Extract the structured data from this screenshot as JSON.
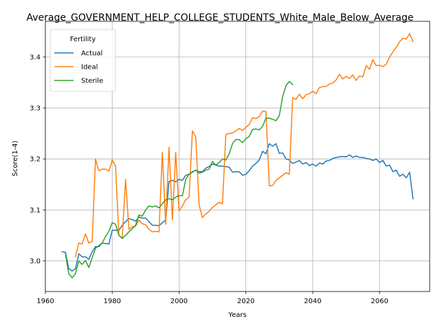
{
  "chart_data": {
    "type": "line",
    "title": "Average_GOVERNMENT_HELP_COLLEGE_STUDENTS_White_Male_Below_Average",
    "xlabel": "Years",
    "ylabel": "Score(1-4)",
    "xlim": [
      1960,
      2075
    ],
    "ylim": [
      2.94,
      3.47
    ],
    "xticks": [
      1960,
      1980,
      2000,
      2020,
      2040,
      2060
    ],
    "yticks": [
      3.0,
      3.1,
      3.2,
      3.3,
      3.4
    ],
    "xtick_labels": [
      "1960",
      "1980",
      "2000",
      "2020",
      "2040",
      "2060"
    ],
    "ytick_labels": [
      "3.0",
      "3.1",
      "3.2",
      "3.3",
      "3.4"
    ],
    "grid": true,
    "legend": {
      "title": "Fertility",
      "placement": "top-left"
    },
    "series": [
      {
        "name": "Actual",
        "color": "#1f77b4",
        "x": [
          1965,
          1966,
          1967,
          1968,
          1969,
          1970,
          1971,
          1972,
          1973,
          1974,
          1975,
          1976,
          1977,
          1978,
          1979,
          1980,
          1981,
          1982,
          1983,
          1984,
          1985,
          1986,
          1987,
          1988,
          1989,
          1990,
          1991,
          1992,
          1993,
          1994,
          1995,
          1996,
          1997,
          1998,
          1999,
          2000,
          2001,
          2002,
          2003,
          2004,
          2005,
          2006,
          2007,
          2008,
          2009,
          2010,
          2011,
          2012,
          2013,
          2014,
          2015,
          2016,
          2017,
          2018,
          2019,
          2020,
          2021,
          2022,
          2023,
          2024,
          2025,
          2026,
          2027,
          2028,
          2029,
          2030,
          2031,
          2032,
          2033,
          2034,
          2035,
          2036,
          2037,
          2038,
          2039,
          2040,
          2041,
          2042,
          2043,
          2044,
          2045,
          2046,
          2047,
          2048,
          2049,
          2050,
          2051,
          2052,
          2053,
          2054,
          2055,
          2056,
          2057,
          2058,
          2059,
          2060,
          2061,
          2062,
          2063,
          2064,
          2065,
          2066,
          2067,
          2068,
          2069,
          2070
        ],
        "y": [
          3.018,
          3.017,
          2.985,
          2.98,
          2.985,
          3.014,
          3.008,
          3.008,
          3.003,
          3.018,
          3.028,
          3.028,
          3.035,
          3.034,
          3.033,
          3.06,
          3.06,
          3.06,
          3.07,
          3.077,
          3.083,
          3.081,
          3.078,
          3.086,
          3.084,
          3.084,
          3.077,
          3.07,
          3.07,
          3.069,
          3.075,
          3.08,
          3.156,
          3.158,
          3.155,
          3.16,
          3.158,
          3.168,
          3.17,
          3.174,
          3.178,
          3.175,
          3.175,
          3.182,
          3.185,
          3.19,
          3.188,
          3.186,
          3.186,
          3.185,
          3.184,
          3.174,
          3.175,
          3.175,
          3.168,
          3.17,
          3.177,
          3.186,
          3.191,
          3.198,
          3.215,
          3.21,
          3.23,
          3.225,
          3.23,
          3.211,
          3.212,
          3.2,
          3.198,
          3.191,
          3.194,
          3.197,
          3.19,
          3.193,
          3.187,
          3.19,
          3.186,
          3.192,
          3.19,
          3.196,
          3.197,
          3.201,
          3.203,
          3.204,
          3.205,
          3.204,
          3.208,
          3.203,
          3.206,
          3.203,
          3.203,
          3.201,
          3.2,
          3.197,
          3.2,
          3.193,
          3.197,
          3.186,
          3.188,
          3.175,
          3.178,
          3.166,
          3.17,
          3.163,
          3.174,
          3.122
        ]
      },
      {
        "name": "Ideal",
        "color": "#ff7f0e",
        "x": [
          1969,
          1970,
          1971,
          1972,
          1973,
          1974,
          1975,
          1976,
          1977,
          1978,
          1979,
          1980,
          1981,
          1982,
          1983,
          1984,
          1985,
          1986,
          1987,
          1988,
          1989,
          1990,
          1991,
          1992,
          1993,
          1994,
          1995,
          1996,
          1997,
          1998,
          1999,
          2000,
          2001,
          2002,
          2003,
          2004,
          2005,
          2006,
          2007,
          2008,
          2009,
          2010,
          2011,
          2012,
          2013,
          2014,
          2015,
          2016,
          2017,
          2018,
          2019,
          2020,
          2021,
          2022,
          2023,
          2024,
          2025,
          2026,
          2027,
          2028,
          2029,
          2030,
          2031,
          2032,
          2033,
          2034,
          2035,
          2036,
          2037,
          2038,
          2039,
          2040,
          2041,
          2042,
          2043,
          2044,
          2045,
          2046,
          2047,
          2048,
          2049,
          2050,
          2051,
          2052,
          2053,
          2054,
          2055,
          2056,
          2057,
          2058,
          2059,
          2060,
          2061,
          2062,
          2063,
          2064,
          2065,
          2066,
          2067,
          2068,
          2069,
          2070
        ],
        "y": [
          3.008,
          3.035,
          3.033,
          3.053,
          3.035,
          3.038,
          3.2,
          3.177,
          3.18,
          3.18,
          3.176,
          3.198,
          3.186,
          3.05,
          3.045,
          3.16,
          3.062,
          3.067,
          3.068,
          3.08,
          3.073,
          3.071,
          3.062,
          3.057,
          3.058,
          3.057,
          3.213,
          3.072,
          3.223,
          3.08,
          3.213,
          3.098,
          3.108,
          3.12,
          3.125,
          3.255,
          3.243,
          3.11,
          3.085,
          3.092,
          3.097,
          3.105,
          3.11,
          3.115,
          3.112,
          3.248,
          3.25,
          3.251,
          3.255,
          3.26,
          3.256,
          3.262,
          3.268,
          3.281,
          3.279,
          3.283,
          3.294,
          3.293,
          3.147,
          3.148,
          3.158,
          3.163,
          3.168,
          3.173,
          3.17,
          3.32,
          3.317,
          3.327,
          3.318,
          3.326,
          3.328,
          3.333,
          3.328,
          3.34,
          3.342,
          3.342,
          3.347,
          3.349,
          3.355,
          3.366,
          3.357,
          3.362,
          3.358,
          3.365,
          3.354,
          3.363,
          3.361,
          3.383,
          3.376,
          3.395,
          3.383,
          3.384,
          3.381,
          3.386,
          3.4,
          3.41,
          3.419,
          3.43,
          3.437,
          3.435,
          3.446,
          3.43
        ]
      },
      {
        "name": "Sterile",
        "color": "#2ca02c",
        "x": [
          1966,
          1967,
          1968,
          1969,
          1970,
          1971,
          1972,
          1973,
          1974,
          1975,
          1976,
          1977,
          1978,
          1979,
          1980,
          1981,
          1982,
          1983,
          1984,
          1985,
          1986,
          1987,
          1988,
          1989,
          1990,
          1991,
          1992,
          1993,
          1994,
          1995,
          1996,
          1997,
          1998,
          1999,
          2000,
          2001,
          2002,
          2003,
          2004,
          2005,
          2006,
          2007,
          2008,
          2009,
          2010,
          2011,
          2012,
          2013,
          2014,
          2015,
          2016,
          2017,
          2018,
          2019,
          2020,
          2021,
          2022,
          2023,
          2024,
          2025,
          2026,
          2027,
          2028,
          2029,
          2030,
          2031,
          2032,
          2033,
          2034
        ],
        "y": [
          3.014,
          2.975,
          2.967,
          2.975,
          3.0,
          2.993,
          3.001,
          2.987,
          3.006,
          3.025,
          3.03,
          3.035,
          3.048,
          3.058,
          3.075,
          3.072,
          3.05,
          3.044,
          3.05,
          3.057,
          3.063,
          3.07,
          3.09,
          3.088,
          3.1,
          3.108,
          3.106,
          3.108,
          3.104,
          3.112,
          3.12,
          3.122,
          3.12,
          3.125,
          3.128,
          3.128,
          3.16,
          3.17,
          3.175,
          3.178,
          3.172,
          3.174,
          3.178,
          3.18,
          3.195,
          3.188,
          3.193,
          3.2,
          3.198,
          3.21,
          3.23,
          3.238,
          3.238,
          3.232,
          3.24,
          3.244,
          3.258,
          3.259,
          3.257,
          3.264,
          3.28,
          3.28,
          3.278,
          3.275,
          3.285,
          3.322,
          3.344,
          3.352,
          3.346
        ]
      }
    ]
  }
}
